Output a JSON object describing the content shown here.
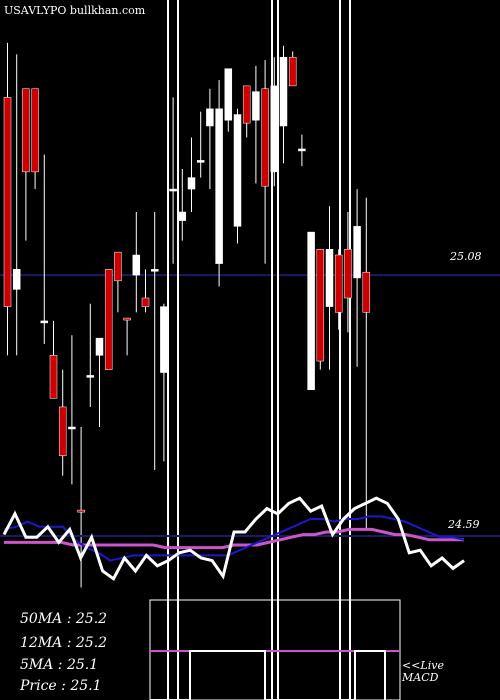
{
  "watermark": "USAVLYPO bullkhan.com",
  "colors": {
    "background": "#000000",
    "up_candle": "#ffffff",
    "down_candle": "#cc0000",
    "price_line": "#1a1a66",
    "oscillator": "#ffffff",
    "fast_ma": "#1a1acc",
    "slow_ma": "#cc55cc",
    "markers": "#ffffff"
  },
  "main_panel": {
    "price_label": "25.08",
    "price_level": 25.08,
    "ylim": [
      24.4,
      25.9
    ]
  },
  "oscillator_panel": {
    "level_label": "24.59"
  },
  "legend": {
    "ma50": "50MA : 25.2",
    "ma12": "12MA : 25.2",
    "ma5": "5MA : 25.1",
    "price": "Price   : 25.1"
  },
  "macd_label_1": "<<Live",
  "macd_label_2": "MACD",
  "chart_data": {
    "type": "candlestick",
    "title": "",
    "current_price_line": 25.08,
    "ylim": [
      24.4,
      25.9
    ],
    "candles": [
      {
        "o": 24.97,
        "h": 25.89,
        "l": 24.8,
        "c": 25.7,
        "dir": "down"
      },
      {
        "o": 25.03,
        "h": 25.85,
        "l": 24.8,
        "c": 25.1,
        "dir": "up"
      },
      {
        "o": 25.73,
        "h": 25.73,
        "l": 25.2,
        "c": 25.44,
        "dir": "down"
      },
      {
        "o": 25.73,
        "h": 25.73,
        "l": 25.38,
        "c": 25.44,
        "dir": "down"
      },
      {
        "o": 24.92,
        "h": 25.5,
        "l": 24.84,
        "c": 24.92,
        "dir": "up"
      },
      {
        "o": 24.8,
        "h": 24.92,
        "l": 24.65,
        "c": 24.65,
        "dir": "down"
      },
      {
        "o": 24.62,
        "h": 24.75,
        "l": 24.38,
        "c": 24.45,
        "dir": "down"
      },
      {
        "o": 24.55,
        "h": 24.87,
        "l": 24.35,
        "c": 24.55,
        "dir": "up"
      },
      {
        "o": 24.26,
        "h": 24.55,
        "l": 23.99,
        "c": 24.26,
        "dir": "down"
      },
      {
        "o": 24.73,
        "h": 24.98,
        "l": 24.62,
        "c": 24.73,
        "dir": "up"
      },
      {
        "o": 24.8,
        "h": 24.85,
        "l": 24.55,
        "c": 24.86,
        "dir": "up"
      },
      {
        "o": 25.1,
        "h": 25.1,
        "l": 24.75,
        "c": 24.75,
        "dir": "down"
      },
      {
        "o": 25.16,
        "h": 25.16,
        "l": 24.95,
        "c": 25.06,
        "dir": "down"
      },
      {
        "o": 24.93,
        "h": 24.93,
        "l": 24.8,
        "c": 24.93,
        "dir": "down"
      },
      {
        "o": 25.08,
        "h": 25.3,
        "l": 24.95,
        "c": 25.15,
        "dir": "up"
      },
      {
        "o": 25.0,
        "h": 25.1,
        "l": 24.95,
        "c": 24.97,
        "dir": "down"
      },
      {
        "o": 25.1,
        "h": 25.3,
        "l": 24.4,
        "c": 25.1,
        "dir": "up"
      },
      {
        "o": 24.74,
        "h": 24.98,
        "l": 24.43,
        "c": 24.97,
        "dir": "up"
      },
      {
        "o": 25.38,
        "h": 25.7,
        "l": 25.12,
        "c": 25.38,
        "dir": "up"
      },
      {
        "o": 25.27,
        "h": 25.45,
        "l": 25.2,
        "c": 25.3,
        "dir": "up"
      },
      {
        "o": 25.38,
        "h": 25.56,
        "l": 25.3,
        "c": 25.42,
        "dir": "up"
      },
      {
        "o": 25.48,
        "h": 25.65,
        "l": 25.42,
        "c": 25.48,
        "dir": "up"
      },
      {
        "o": 25.6,
        "h": 25.73,
        "l": 25.38,
        "c": 25.66,
        "dir": "up"
      },
      {
        "o": 25.12,
        "h": 25.76,
        "l": 25.04,
        "c": 25.66,
        "dir": "up"
      },
      {
        "o": 25.62,
        "h": 25.79,
        "l": 25.58,
        "c": 25.8,
        "dir": "up"
      },
      {
        "o": 25.25,
        "h": 25.66,
        "l": 25.19,
        "c": 25.64,
        "dir": "up"
      },
      {
        "o": 25.74,
        "h": 25.74,
        "l": 25.56,
        "c": 25.61,
        "dir": "down"
      },
      {
        "o": 25.62,
        "h": 25.81,
        "l": 25.4,
        "c": 25.72,
        "dir": "up"
      },
      {
        "o": 25.39,
        "h": 25.83,
        "l": 25.12,
        "c": 25.73,
        "dir": "down"
      },
      {
        "o": 25.74,
        "h": 25.84,
        "l": 25.39,
        "c": 25.44,
        "dir": "up"
      },
      {
        "o": 25.6,
        "h": 25.88,
        "l": 25.47,
        "c": 25.84,
        "dir": "up"
      },
      {
        "o": 25.74,
        "h": 25.86,
        "l": 25.74,
        "c": 25.84,
        "dir": "down"
      },
      {
        "o": 25.52,
        "h": 25.57,
        "l": 25.46,
        "c": 25.52,
        "dir": "up"
      },
      {
        "o": 24.68,
        "h": 25.23,
        "l": 24.68,
        "c": 25.23,
        "dir": "up"
      },
      {
        "o": 25.17,
        "h": 25.17,
        "l": 24.75,
        "c": 24.78,
        "dir": "down"
      },
      {
        "o": 25.17,
        "h": 25.32,
        "l": 24.75,
        "c": 24.97,
        "dir": "up"
      },
      {
        "o": 24.95,
        "h": 25.17,
        "l": 24.89,
        "c": 25.15,
        "dir": "down"
      },
      {
        "o": 25.17,
        "h": 25.3,
        "l": 24.88,
        "c": 25.0,
        "dir": "down"
      },
      {
        "o": 25.25,
        "h": 25.38,
        "l": 24.76,
        "c": 25.07,
        "dir": "up"
      },
      {
        "o": 25.09,
        "h": 25.35,
        "l": 24.19,
        "c": 24.95,
        "dir": "down"
      }
    ],
    "oscillator": {
      "level": 24.59,
      "signal": [
        4,
        12,
        3,
        3,
        7,
        1,
        6,
        -5,
        3,
        -10,
        -13,
        -5,
        -10,
        -4,
        -8,
        -6,
        -3,
        -2,
        -5,
        -6,
        -12,
        5,
        5,
        10,
        14,
        12,
        16,
        18,
        13,
        15,
        4,
        10,
        14,
        16,
        18,
        16,
        10,
        -3,
        -2,
        -8,
        -5,
        -9,
        -6
      ],
      "fast": [
        6,
        7,
        9,
        7,
        7,
        7,
        2,
        -1,
        -3,
        -6,
        -5,
        -4,
        -4,
        -4,
        -4,
        -4,
        -4,
        -4,
        -4,
        -4,
        -2,
        0,
        2,
        4,
        6,
        8,
        10,
        10,
        9,
        10,
        10,
        11,
        11,
        10,
        9,
        7,
        5,
        3,
        3,
        2
      ],
      "slow": [
        1,
        1,
        1,
        1,
        1,
        1,
        0,
        0,
        0,
        0,
        0,
        0,
        0,
        0,
        -1,
        -1,
        -1,
        -1,
        -1,
        -1,
        0,
        0,
        0,
        1,
        2,
        3,
        4,
        4,
        5,
        5,
        6,
        6,
        6,
        5,
        4,
        4,
        3,
        2,
        2,
        2,
        2
      ]
    }
  }
}
